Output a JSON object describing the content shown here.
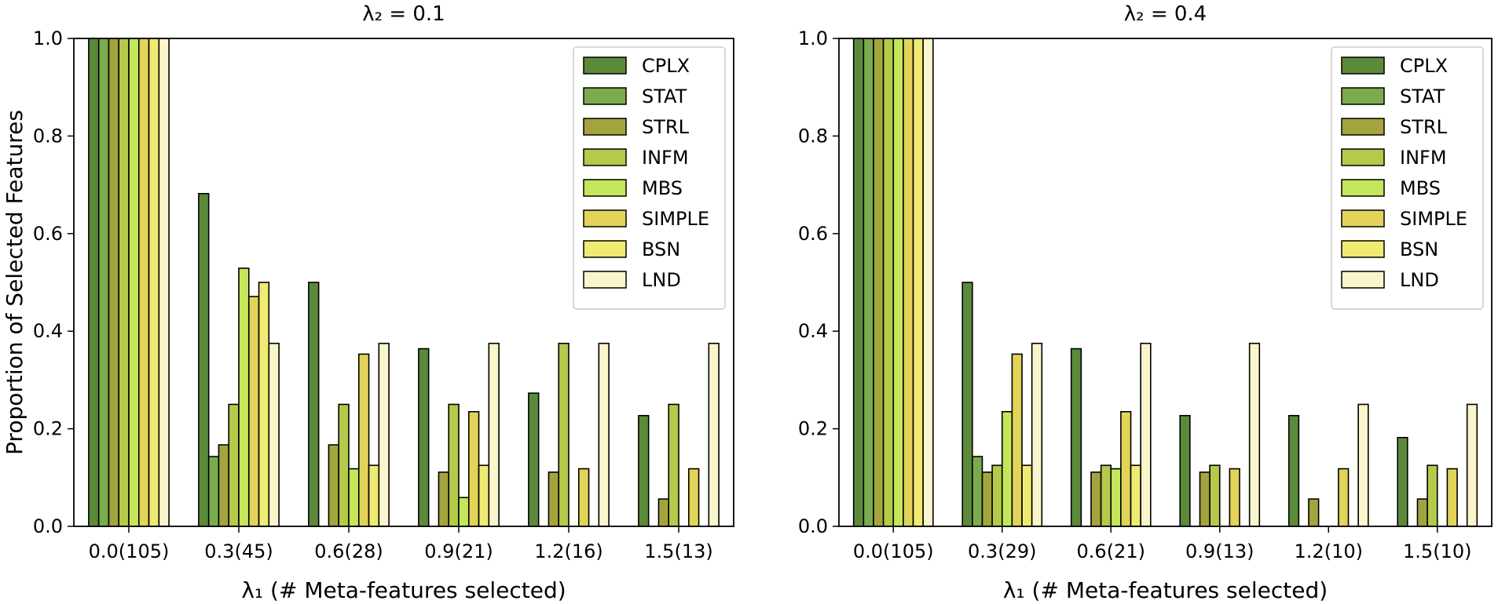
{
  "chart_data": [
    {
      "type": "bar",
      "title": "λ₂ = 0.1",
      "xlabel": "λ₁ (# Meta-features selected)",
      "ylabel": "Proportion of Selected Features",
      "ylim": [
        0,
        1.0
      ],
      "yticks": [
        "0.0",
        "0.2",
        "0.4",
        "0.6",
        "0.8",
        "1.0"
      ],
      "categories": [
        "0.0(105)",
        "0.3(45)",
        "0.6(28)",
        "0.9(21)",
        "1.2(16)",
        "1.5(13)"
      ],
      "legend_position": "top-right",
      "series": [
        {
          "name": "CPLX",
          "color": "#5a8a3a",
          "values": [
            1.0,
            0.682,
            0.5,
            0.364,
            0.273,
            0.227
          ]
        },
        {
          "name": "STAT",
          "color": "#7aac4e",
          "values": [
            1.0,
            0.143,
            0.0,
            0.0,
            0.0,
            0.0
          ]
        },
        {
          "name": "STRL",
          "color": "#a3a43e",
          "values": [
            1.0,
            0.167,
            0.167,
            0.111,
            0.111,
            0.056
          ]
        },
        {
          "name": "INFM",
          "color": "#b5c94a",
          "values": [
            1.0,
            0.25,
            0.25,
            0.25,
            0.375,
            0.25
          ]
        },
        {
          "name": "MBS",
          "color": "#c5e65a",
          "values": [
            1.0,
            0.529,
            0.118,
            0.059,
            0.0,
            0.0
          ]
        },
        {
          "name": "SIMPLE",
          "color": "#e2d458",
          "values": [
            1.0,
            0.471,
            0.353,
            0.235,
            0.118,
            0.118
          ]
        },
        {
          "name": "BSN",
          "color": "#eeea72",
          "values": [
            1.0,
            0.5,
            0.125,
            0.125,
            0.0,
            0.0
          ]
        },
        {
          "name": "LND",
          "color": "#fbf5cc",
          "values": [
            1.0,
            0.375,
            0.375,
            0.375,
            0.375,
            0.375
          ]
        }
      ]
    },
    {
      "type": "bar",
      "title": "λ₂ = 0.4",
      "xlabel": "λ₁ (# Meta-features selected)",
      "ylabel": "",
      "ylim": [
        0,
        1.0
      ],
      "yticks": [
        "0.0",
        "0.2",
        "0.4",
        "0.6",
        "0.8",
        "1.0"
      ],
      "categories": [
        "0.0(105)",
        "0.3(29)",
        "0.6(21)",
        "0.9(13)",
        "1.2(10)",
        "1.5(10)"
      ],
      "legend_position": "top-right",
      "series": [
        {
          "name": "CPLX",
          "color": "#5a8a3a",
          "values": [
            1.0,
            0.5,
            0.364,
            0.227,
            0.227,
            0.182
          ]
        },
        {
          "name": "STAT",
          "color": "#7aac4e",
          "values": [
            1.0,
            0.143,
            0.0,
            0.0,
            0.0,
            0.0
          ]
        },
        {
          "name": "STRL",
          "color": "#a3a43e",
          "values": [
            1.0,
            0.111,
            0.111,
            0.111,
            0.056,
            0.056
          ]
        },
        {
          "name": "INFM",
          "color": "#b5c94a",
          "values": [
            1.0,
            0.125,
            0.125,
            0.125,
            0.0,
            0.125
          ]
        },
        {
          "name": "MBS",
          "color": "#c5e65a",
          "values": [
            1.0,
            0.235,
            0.118,
            0.0,
            0.0,
            0.0
          ]
        },
        {
          "name": "SIMPLE",
          "color": "#e2d458",
          "values": [
            1.0,
            0.353,
            0.235,
            0.118,
            0.118,
            0.118
          ]
        },
        {
          "name": "BSN",
          "color": "#eeea72",
          "values": [
            1.0,
            0.125,
            0.125,
            0.0,
            0.0,
            0.0
          ]
        },
        {
          "name": "LND",
          "color": "#fbf5cc",
          "values": [
            1.0,
            0.375,
            0.375,
            0.375,
            0.25,
            0.25
          ]
        }
      ]
    }
  ]
}
